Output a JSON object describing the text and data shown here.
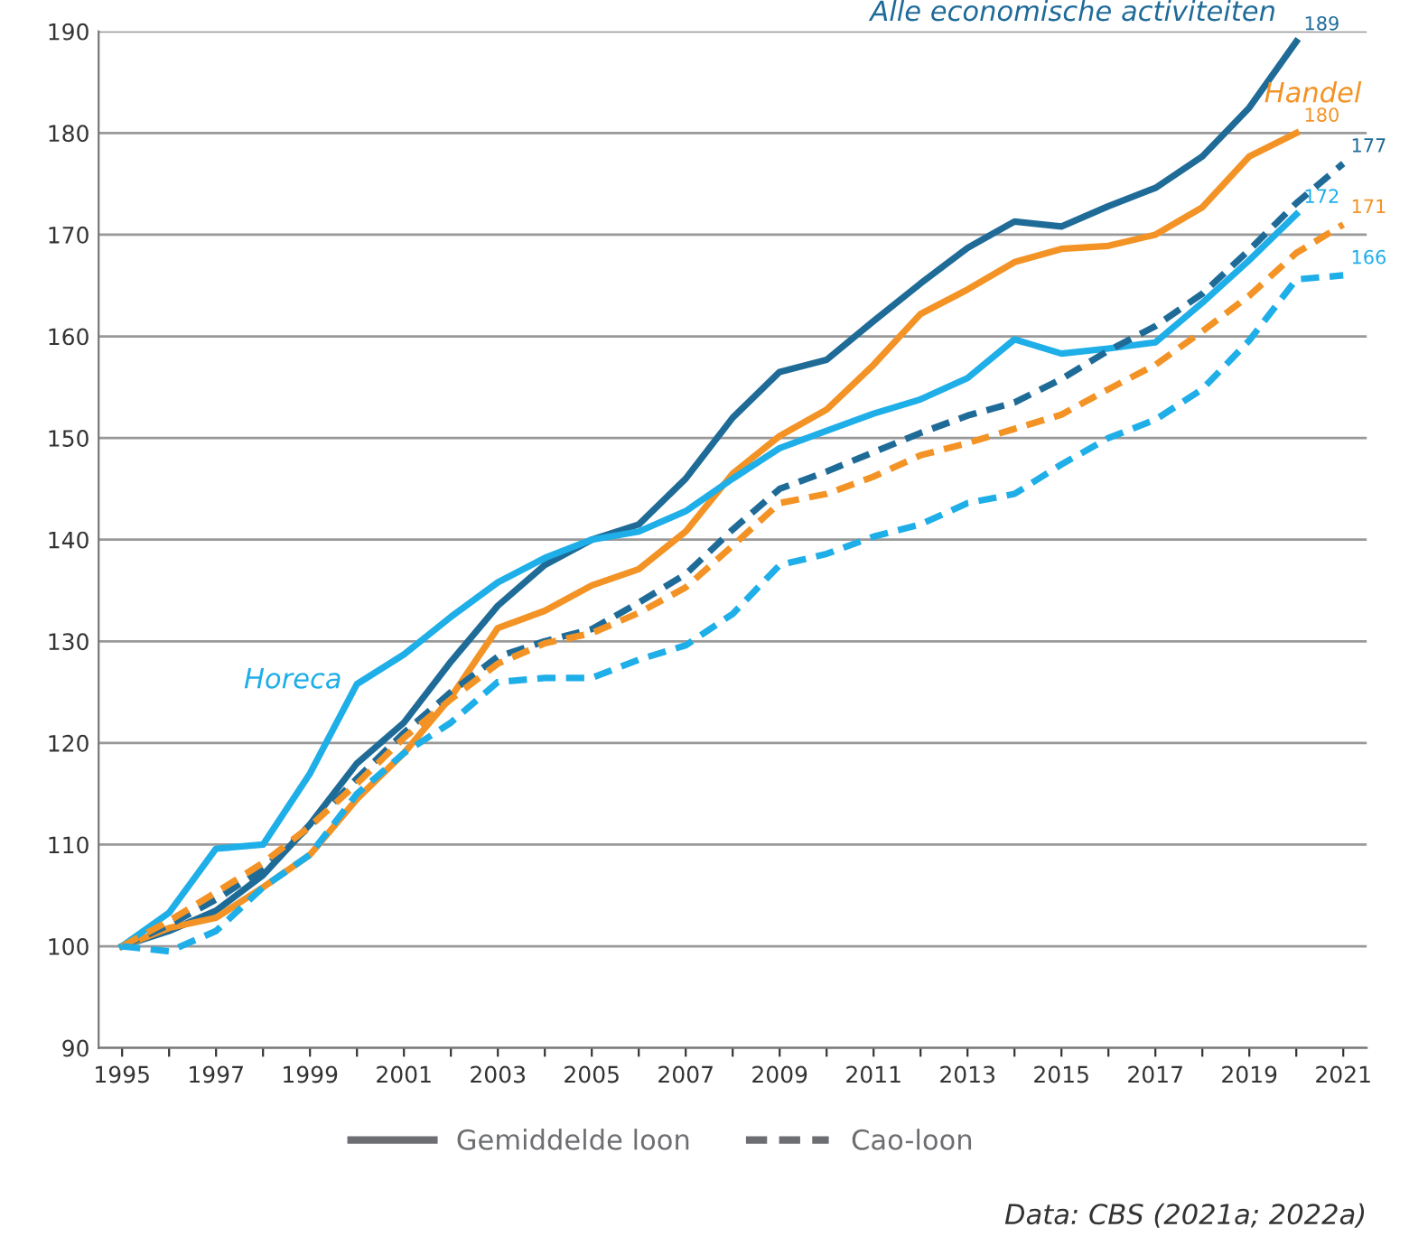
{
  "chart_data": {
    "type": "line",
    "x": [
      1995,
      1996,
      1997,
      1998,
      1999,
      2000,
      2001,
      2002,
      2003,
      2004,
      2005,
      2006,
      2007,
      2008,
      2009,
      2010,
      2011,
      2012,
      2013,
      2014,
      2015,
      2016,
      2017,
      2018,
      2019,
      2020,
      2021
    ],
    "series": [
      {
        "name": "Alle economische activiteiten",
        "color": "#1f6b98",
        "line_style": "solid",
        "values": [
          100,
          101.5,
          103.5,
          107,
          112,
          118,
          122,
          128,
          133.5,
          137.5,
          140,
          141.5,
          146,
          152,
          156.5,
          157.7,
          161.5,
          165.2,
          168.7,
          171.3,
          170.8,
          172.8,
          174.6,
          177.7,
          182.5,
          189,
          null
        ],
        "value_labels": [
          null,
          null,
          null,
          null,
          null,
          null,
          null,
          null,
          null,
          null,
          null,
          null,
          null,
          null,
          null,
          null,
          null,
          null,
          null,
          null,
          null,
          null,
          null,
          null,
          null,
          "189",
          null
        ]
      },
      {
        "name": "Handel",
        "color": "#f39325",
        "line_style": "solid",
        "values": [
          100,
          101.8,
          102.8,
          105.8,
          109,
          114.5,
          119,
          124.5,
          131.3,
          133,
          135.5,
          137.1,
          140.8,
          146.5,
          150.2,
          152.8,
          157.2,
          162.2,
          164.6,
          167.3,
          168.6,
          168.9,
          170,
          172.7,
          177.7,
          180,
          null
        ],
        "value_labels": [
          null,
          null,
          null,
          null,
          null,
          null,
          null,
          null,
          null,
          null,
          null,
          null,
          null,
          null,
          null,
          null,
          null,
          null,
          null,
          null,
          null,
          null,
          null,
          null,
          null,
          "180",
          null
        ]
      },
      {
        "name": "Horeca",
        "color": "#1eaee8",
        "line_style": "solid",
        "values": [
          100,
          103.3,
          109.6,
          110,
          117,
          125.8,
          128.7,
          132.4,
          135.8,
          138.2,
          140,
          140.8,
          142.8,
          146,
          149,
          150.7,
          152.4,
          153.8,
          155.9,
          159.7,
          158.3,
          158.8,
          159.4,
          163.3,
          167.5,
          172,
          null
        ],
        "value_labels": [
          null,
          null,
          null,
          null,
          null,
          null,
          null,
          null,
          null,
          null,
          null,
          null,
          null,
          null,
          null,
          null,
          null,
          null,
          null,
          null,
          null,
          null,
          null,
          null,
          null,
          "172",
          null
        ]
      },
      {
        "color": "#1f6b98",
        "line_style": "dashed",
        "values": [
          100,
          102.1,
          104.6,
          107.6,
          111.8,
          116.5,
          121,
          125,
          128.5,
          130,
          131.2,
          133.8,
          136.6,
          141,
          145,
          146.7,
          148.6,
          150.5,
          152.2,
          153.5,
          155.8,
          158.6,
          161,
          164.2,
          168.5,
          173.1,
          177
        ],
        "value_labels": [
          null,
          null,
          null,
          null,
          null,
          null,
          null,
          null,
          null,
          null,
          null,
          null,
          null,
          null,
          null,
          null,
          null,
          null,
          null,
          null,
          null,
          null,
          null,
          null,
          null,
          null,
          "177"
        ]
      },
      {
        "color": "#f39325",
        "line_style": "dashed",
        "values": [
          100,
          102.5,
          105.3,
          108.2,
          111.8,
          116,
          120.5,
          124.3,
          127.8,
          129.8,
          130.8,
          132.8,
          135.3,
          139.4,
          143.6,
          144.5,
          146.2,
          148.3,
          149.5,
          150.9,
          152.3,
          154.8,
          157.2,
          160.5,
          164,
          168.2,
          171
        ],
        "value_labels": [
          null,
          null,
          null,
          null,
          null,
          null,
          null,
          null,
          null,
          null,
          null,
          null,
          null,
          null,
          null,
          null,
          null,
          null,
          null,
          null,
          null,
          null,
          null,
          null,
          null,
          null,
          "171"
        ]
      },
      {
        "color": "#1eaee8",
        "line_style": "dashed",
        "values": [
          100,
          99.5,
          101.5,
          105.8,
          109,
          115,
          119,
          122,
          126,
          126.4,
          126.4,
          128.2,
          129.6,
          132.7,
          137.5,
          138.6,
          140.3,
          141.5,
          143.6,
          144.5,
          147.4,
          150,
          151.8,
          154.8,
          159.6,
          165.6,
          166
        ],
        "value_labels": [
          null,
          null,
          null,
          null,
          null,
          null,
          null,
          null,
          null,
          null,
          null,
          null,
          null,
          null,
          null,
          null,
          null,
          null,
          null,
          null,
          null,
          null,
          null,
          null,
          null,
          null,
          "166"
        ]
      }
    ],
    "xlim": [
      1994.5,
      2021.5
    ],
    "xticks": [
      1995,
      {
        "value": 1996,
        "label": null
      },
      1997,
      {
        "value": 1998,
        "label": null
      },
      1999,
      {
        "value": 2000,
        "label": null
      },
      2001,
      {
        "value": 2002,
        "label": null
      },
      2003,
      {
        "value": 2004,
        "label": null
      },
      2005,
      {
        "value": 2006,
        "label": null
      },
      2007,
      {
        "value": 2008,
        "label": null
      },
      2009,
      {
        "value": 2010,
        "label": null
      },
      2011,
      {
        "value": 2012,
        "label": null
      },
      2013,
      {
        "value": 2014,
        "label": null
      },
      2015,
      {
        "value": 2016,
        "label": null
      },
      2017,
      {
        "value": 2018,
        "label": null
      },
      2019,
      {
        "value": 2020,
        "label": null
      },
      2021
    ],
    "ylim": [
      90,
      190
    ],
    "yticks": [
      90,
      100,
      110,
      120,
      130,
      140,
      150,
      160,
      170,
      180,
      190
    ],
    "grid": "y",
    "marker": "none",
    "annotations": [
      "Gemiddelde loon",
      "Cao-loon",
      "Data: CBS (2021a; 2022a)"
    ]
  }
}
